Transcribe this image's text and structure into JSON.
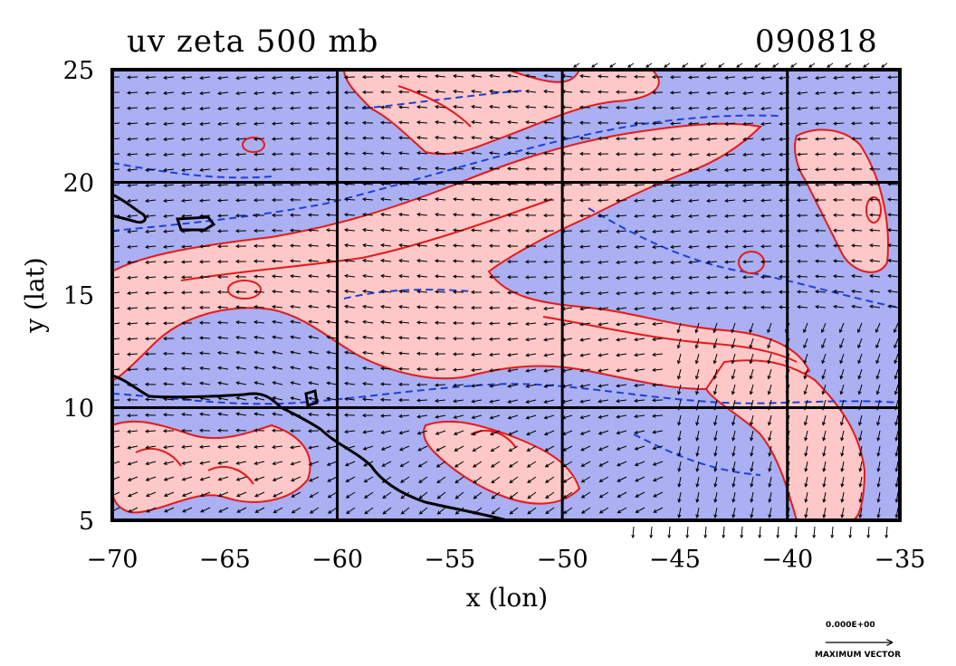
{
  "chart_data": {
    "type": "contour",
    "title": "uv zeta 500 mb",
    "date_label": "090818",
    "xlabel": "x (lon)",
    "ylabel": "y (lat)",
    "xlim": [
      -70,
      -35
    ],
    "ylim": [
      5,
      25
    ],
    "xticks": [
      -70,
      -65,
      -60,
      -55,
      -50,
      -45,
      -40,
      -35
    ],
    "yticks": [
      5,
      10,
      15,
      20,
      25
    ],
    "gridlines_x": [
      -60,
      -50,
      -40
    ],
    "gridlines_y": [
      10,
      20
    ],
    "grid": true,
    "variables": [
      "wind vectors (u,v)",
      "relative vorticity (zeta)"
    ],
    "positive_contour_color": "#e41a1c",
    "positive_fill_color": "#ffc8c8",
    "negative_contour_color": "#1f3fd6",
    "negative_fill_color": "#aab0f2",
    "coastline_color": "#000000",
    "reference_vector": {
      "value_label": "0.000E+00",
      "caption": "MAXIMUM VECTOR"
    }
  }
}
